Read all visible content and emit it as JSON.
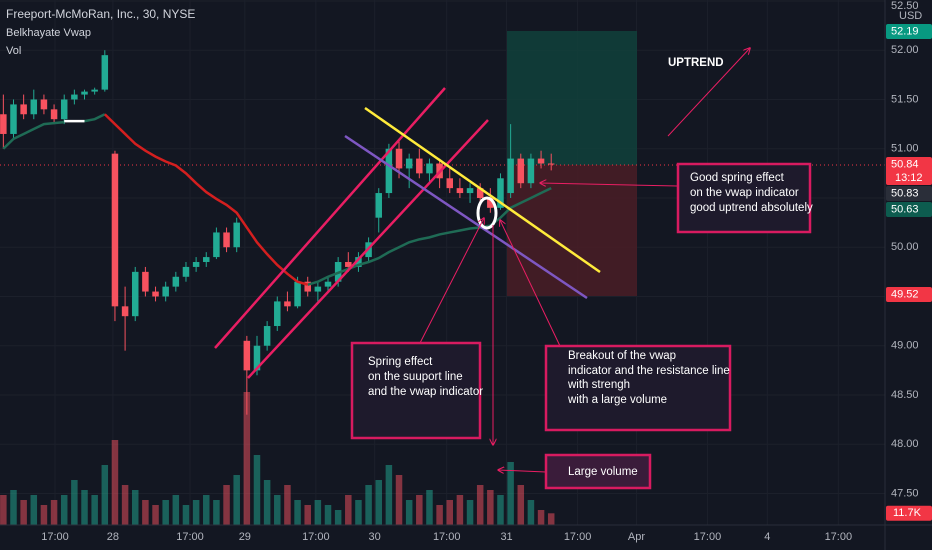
{
  "chart_data": {
    "type": "candlestick",
    "title": "Freeport-McMoRan, Inc., 30, NYSE",
    "currency": "USD",
    "categories": [
      null,
      null,
      null,
      null,
      null,
      null,
      null,
      null,
      null,
      null,
      null,
      null,
      null,
      null,
      null,
      null,
      null,
      null,
      null,
      null,
      null,
      null,
      null,
      null,
      null,
      null,
      null,
      null,
      null,
      null,
      null,
      null,
      null,
      null,
      null,
      null,
      null,
      null,
      null,
      null,
      null,
      null,
      null,
      null,
      null,
      null,
      null,
      null,
      null,
      null,
      null,
      null,
      null,
      null,
      null
    ],
    "open": [
      51.35,
      51.15,
      51.45,
      51.35,
      51.5,
      51.4,
      51.3,
      51.5,
      51.55,
      51.58,
      51.6,
      50.95,
      49.4,
      49.3,
      49.75,
      49.55,
      49.5,
      49.6,
      49.7,
      49.8,
      49.85,
      49.9,
      50.15,
      50.0,
      49.05,
      48.75,
      49.0,
      49.2,
      49.45,
      49.4,
      49.65,
      49.55,
      49.6,
      49.65,
      49.85,
      49.8,
      49.9,
      50.3,
      50.55,
      51.0,
      50.8,
      50.9,
      50.75,
      50.85,
      50.7,
      50.6,
      50.55,
      50.6,
      50.5,
      50.4,
      50.55,
      50.9,
      50.65,
      50.9,
      50.85
    ],
    "high": [
      51.55,
      51.5,
      51.55,
      51.6,
      51.55,
      51.45,
      51.55,
      51.6,
      51.6,
      51.62,
      52.0,
      50.98,
      49.6,
      49.8,
      49.8,
      49.6,
      49.65,
      49.75,
      49.85,
      49.9,
      49.95,
      50.2,
      50.2,
      50.3,
      49.1,
      49.1,
      49.25,
      49.5,
      49.55,
      49.7,
      49.7,
      49.65,
      49.7,
      49.9,
      49.95,
      49.95,
      50.1,
      50.6,
      51.05,
      51.1,
      50.95,
      51.0,
      50.9,
      50.9,
      50.8,
      50.7,
      50.65,
      50.65,
      50.6,
      50.75,
      51.25,
      50.95,
      50.95,
      50.98,
      50.95
    ],
    "low": [
      51.0,
      51.1,
      51.3,
      51.3,
      51.35,
      51.25,
      51.25,
      51.45,
      51.5,
      51.55,
      51.58,
      49.25,
      48.95,
      49.25,
      49.5,
      49.45,
      49.45,
      49.55,
      49.65,
      49.75,
      49.8,
      49.88,
      49.95,
      49.95,
      48.3,
      48.7,
      48.95,
      49.15,
      49.35,
      49.38,
      49.5,
      49.45,
      49.55,
      49.6,
      49.75,
      49.75,
      49.85,
      50.15,
      50.5,
      50.7,
      50.6,
      50.7,
      50.65,
      50.6,
      50.55,
      50.5,
      50.45,
      50.45,
      50.35,
      50.38,
      50.5,
      50.6,
      50.6,
      50.8,
      50.78
    ],
    "close": [
      51.15,
      51.45,
      51.35,
      51.5,
      51.4,
      51.3,
      51.5,
      51.55,
      51.58,
      51.6,
      51.95,
      49.4,
      49.3,
      49.75,
      49.55,
      49.5,
      49.6,
      49.7,
      49.8,
      49.85,
      49.9,
      50.15,
      50.0,
      50.25,
      48.75,
      49.0,
      49.2,
      49.45,
      49.4,
      49.65,
      49.55,
      49.6,
      49.65,
      49.85,
      49.8,
      49.9,
      50.05,
      50.55,
      51.0,
      50.8,
      50.9,
      50.75,
      50.85,
      50.7,
      50.6,
      50.55,
      50.6,
      50.5,
      50.4,
      50.7,
      50.9,
      50.65,
      50.9,
      50.85,
      50.84
    ],
    "up_color": "#22ab94",
    "down_color": "#f7525f",
    "xlim": [
      -0.33,
      86.9
    ],
    "xticks": [
      {
        "value": 5.09,
        "label": "17:00"
      },
      {
        "value": 10.8,
        "label": "28"
      },
      {
        "value": 18.4,
        "label": "17:00"
      },
      {
        "value": 23.8,
        "label": "29"
      },
      {
        "value": 30.8,
        "label": "17:00"
      },
      {
        "value": 36.6,
        "label": "30"
      },
      {
        "value": 43.7,
        "label": "17:00"
      },
      {
        "value": 49.6,
        "label": "31"
      },
      {
        "value": 56.6,
        "label": "17:00"
      },
      {
        "value": 62.4,
        "label": "Apr"
      },
      {
        "value": 69.4,
        "label": "17:00"
      },
      {
        "value": 75.3,
        "label": "4"
      },
      {
        "value": 82.3,
        "label": "17:00"
      }
    ],
    "ylim": [
      47.18,
      52.51
    ],
    "yticks": [
      {
        "value": 47.5,
        "label": "47.50"
      },
      {
        "value": 48,
        "label": "48.00"
      },
      {
        "value": 48.5,
        "label": "48.50"
      },
      {
        "value": 49,
        "label": "49.00"
      },
      {
        "value": 49.5,
        "label": "49.50"
      },
      {
        "value": 50,
        "label": "50.00"
      },
      {
        "value": 50.5,
        "label": "50.50"
      },
      {
        "value": 51,
        "label": "51.00"
      },
      {
        "value": 51.5,
        "label": "51.50"
      },
      {
        "value": 52,
        "label": "52.00"
      },
      {
        "value": 52.5,
        "label": "52.50"
      }
    ],
    "grid": true,
    "vwap": {
      "name": "Belkhayate Vwap",
      "segments": [
        {
          "color": "#1f6b55",
          "values": [
            51.0,
            51.1,
            51.15,
            51.2,
            51.25,
            51.26,
            51.27,
            null,
            51.28,
            51.3,
            51.35,
            null,
            null,
            null,
            null,
            null,
            null,
            null,
            null,
            null,
            null,
            null,
            null,
            null,
            null,
            null,
            null,
            null,
            null,
            null,
            49.62,
            49.65,
            49.7,
            49.74,
            49.78,
            49.82,
            49.85,
            49.89,
            49.95,
            50.0,
            50.05,
            50.08,
            50.1,
            50.13,
            50.15,
            50.17,
            50.19,
            50.2,
            50.22,
            50.3,
            50.4,
            50.45,
            50.5,
            50.55,
            50.6
          ]
        },
        {
          "color": "#ffffff",
          "values": [
            null,
            null,
            null,
            null,
            null,
            null,
            51.28,
            51.28,
            51.28,
            null,
            null,
            null,
            null,
            null,
            null,
            null,
            null,
            null,
            null,
            null,
            null,
            null,
            null,
            null,
            null,
            null,
            null,
            null,
            null,
            null,
            null,
            null,
            null,
            null,
            null,
            null,
            null,
            null,
            null,
            null,
            null,
            null,
            null,
            null,
            null,
            null,
            null,
            null,
            null,
            null,
            null,
            null,
            null,
            null,
            null
          ]
        },
        {
          "color": "#d41f1f",
          "values": [
            null,
            null,
            null,
            null,
            null,
            null,
            null,
            null,
            null,
            null,
            51.35,
            51.25,
            51.15,
            51.05,
            50.98,
            50.92,
            50.87,
            50.83,
            50.75,
            50.65,
            50.56,
            50.49,
            50.43,
            50.35,
            50.2,
            50.05,
            49.93,
            49.82,
            49.73,
            49.65,
            49.62,
            null,
            null,
            null,
            null,
            null,
            null,
            null,
            null,
            null,
            null,
            null,
            null,
            null,
            null,
            null,
            null,
            null,
            null,
            null,
            null,
            null,
            null,
            null,
            null
          ]
        }
      ]
    },
    "volume": {
      "name": "Vol",
      "vlim": [
        0,
        525
      ],
      "last_label": "11.7K",
      "last_color": "#f23645",
      "values": [
        30,
        35,
        25,
        30,
        20,
        25,
        30,
        45,
        35,
        30,
        60,
        85,
        40,
        35,
        25,
        20,
        25,
        30,
        20,
        25,
        30,
        25,
        40,
        50,
        133,
        70,
        45,
        30,
        40,
        25,
        20,
        25,
        20,
        15,
        30,
        25,
        40,
        45,
        60,
        50,
        25,
        30,
        35,
        20,
        25,
        30,
        25,
        40,
        35,
        30,
        63,
        40,
        25,
        15,
        11.7
      ]
    },
    "price_labels": [
      {
        "value": 52.19,
        "color": "#089981"
      },
      {
        "value": 50.84,
        "color": "#f23645",
        "sub": "13:12"
      },
      {
        "value": 50.83,
        "color": "#2a2e39"
      },
      {
        "value": 50.63,
        "color": "#0d5c4f"
      },
      {
        "value": 49.52,
        "color": "#f23645"
      }
    ],
    "annotations": [
      {
        "lines": [
          "UPTREND"
        ]
      },
      {
        "lines": [
          "Good spring effect",
          "on the vwap indicator",
          "good uptrend absolutely"
        ]
      },
      {
        "lines": [
          "Spring effect",
          "on the suuport line",
          "and the vwap indicator"
        ]
      },
      {
        "lines": [
          "Breakout of the vwap",
          "indicator and the resistance line",
          "with strengh",
          "with a large volume"
        ]
      },
      {
        "lines": [
          "Large volume"
        ]
      }
    ]
  }
}
